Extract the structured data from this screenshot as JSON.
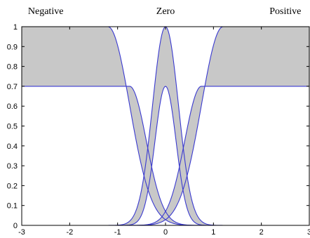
{
  "chart_data": {
    "type": "area",
    "title": "",
    "xlabel": "",
    "ylabel": "",
    "xlim": [
      -3,
      3
    ],
    "ylim": [
      0,
      1
    ],
    "x_ticks": [
      -3,
      -2,
      -1,
      0,
      1,
      2,
      3
    ],
    "y_ticks": [
      0,
      0.1,
      0.2,
      0.3,
      0.4,
      0.5,
      0.6,
      0.7,
      0.8,
      0.9,
      1
    ],
    "x_tick_labels": [
      "-3",
      "-2",
      "-1",
      "0",
      "1",
      "2",
      "3"
    ],
    "y_tick_labels": [
      "0",
      "0.1",
      "0.2",
      "0.3",
      "0.4",
      "0.5",
      "0.6",
      "0.7",
      "0.8",
      "0.9",
      "1"
    ],
    "grid": false,
    "colors": {
      "band_fill": "#c8c8c8",
      "line": "#3a3ad0",
      "axis": "#000000"
    },
    "labels": [
      {
        "text": "Negative",
        "x": -2.5
      },
      {
        "text": "Zero",
        "x": 0
      },
      {
        "text": "Positive",
        "x": 2.5
      }
    ],
    "series": [
      {
        "name": "Negative",
        "upper": {
          "shape": "z",
          "center": -1.2,
          "width": 0.45,
          "height": 1.0
        },
        "lower": {
          "shape": "z",
          "center": -0.75,
          "width": 0.35,
          "height": 0.7
        }
      },
      {
        "name": "Zero",
        "upper": {
          "shape": "gauss",
          "center": 0,
          "width": 0.27,
          "height": 1.0
        },
        "lower": {
          "shape": "gauss",
          "center": 0,
          "width": 0.22,
          "height": 0.7
        }
      },
      {
        "name": "Positive",
        "upper": {
          "shape": "s",
          "center": 1.2,
          "width": 0.45,
          "height": 1.0
        },
        "lower": {
          "shape": "s",
          "center": 0.75,
          "width": 0.35,
          "height": 0.7
        }
      }
    ]
  }
}
